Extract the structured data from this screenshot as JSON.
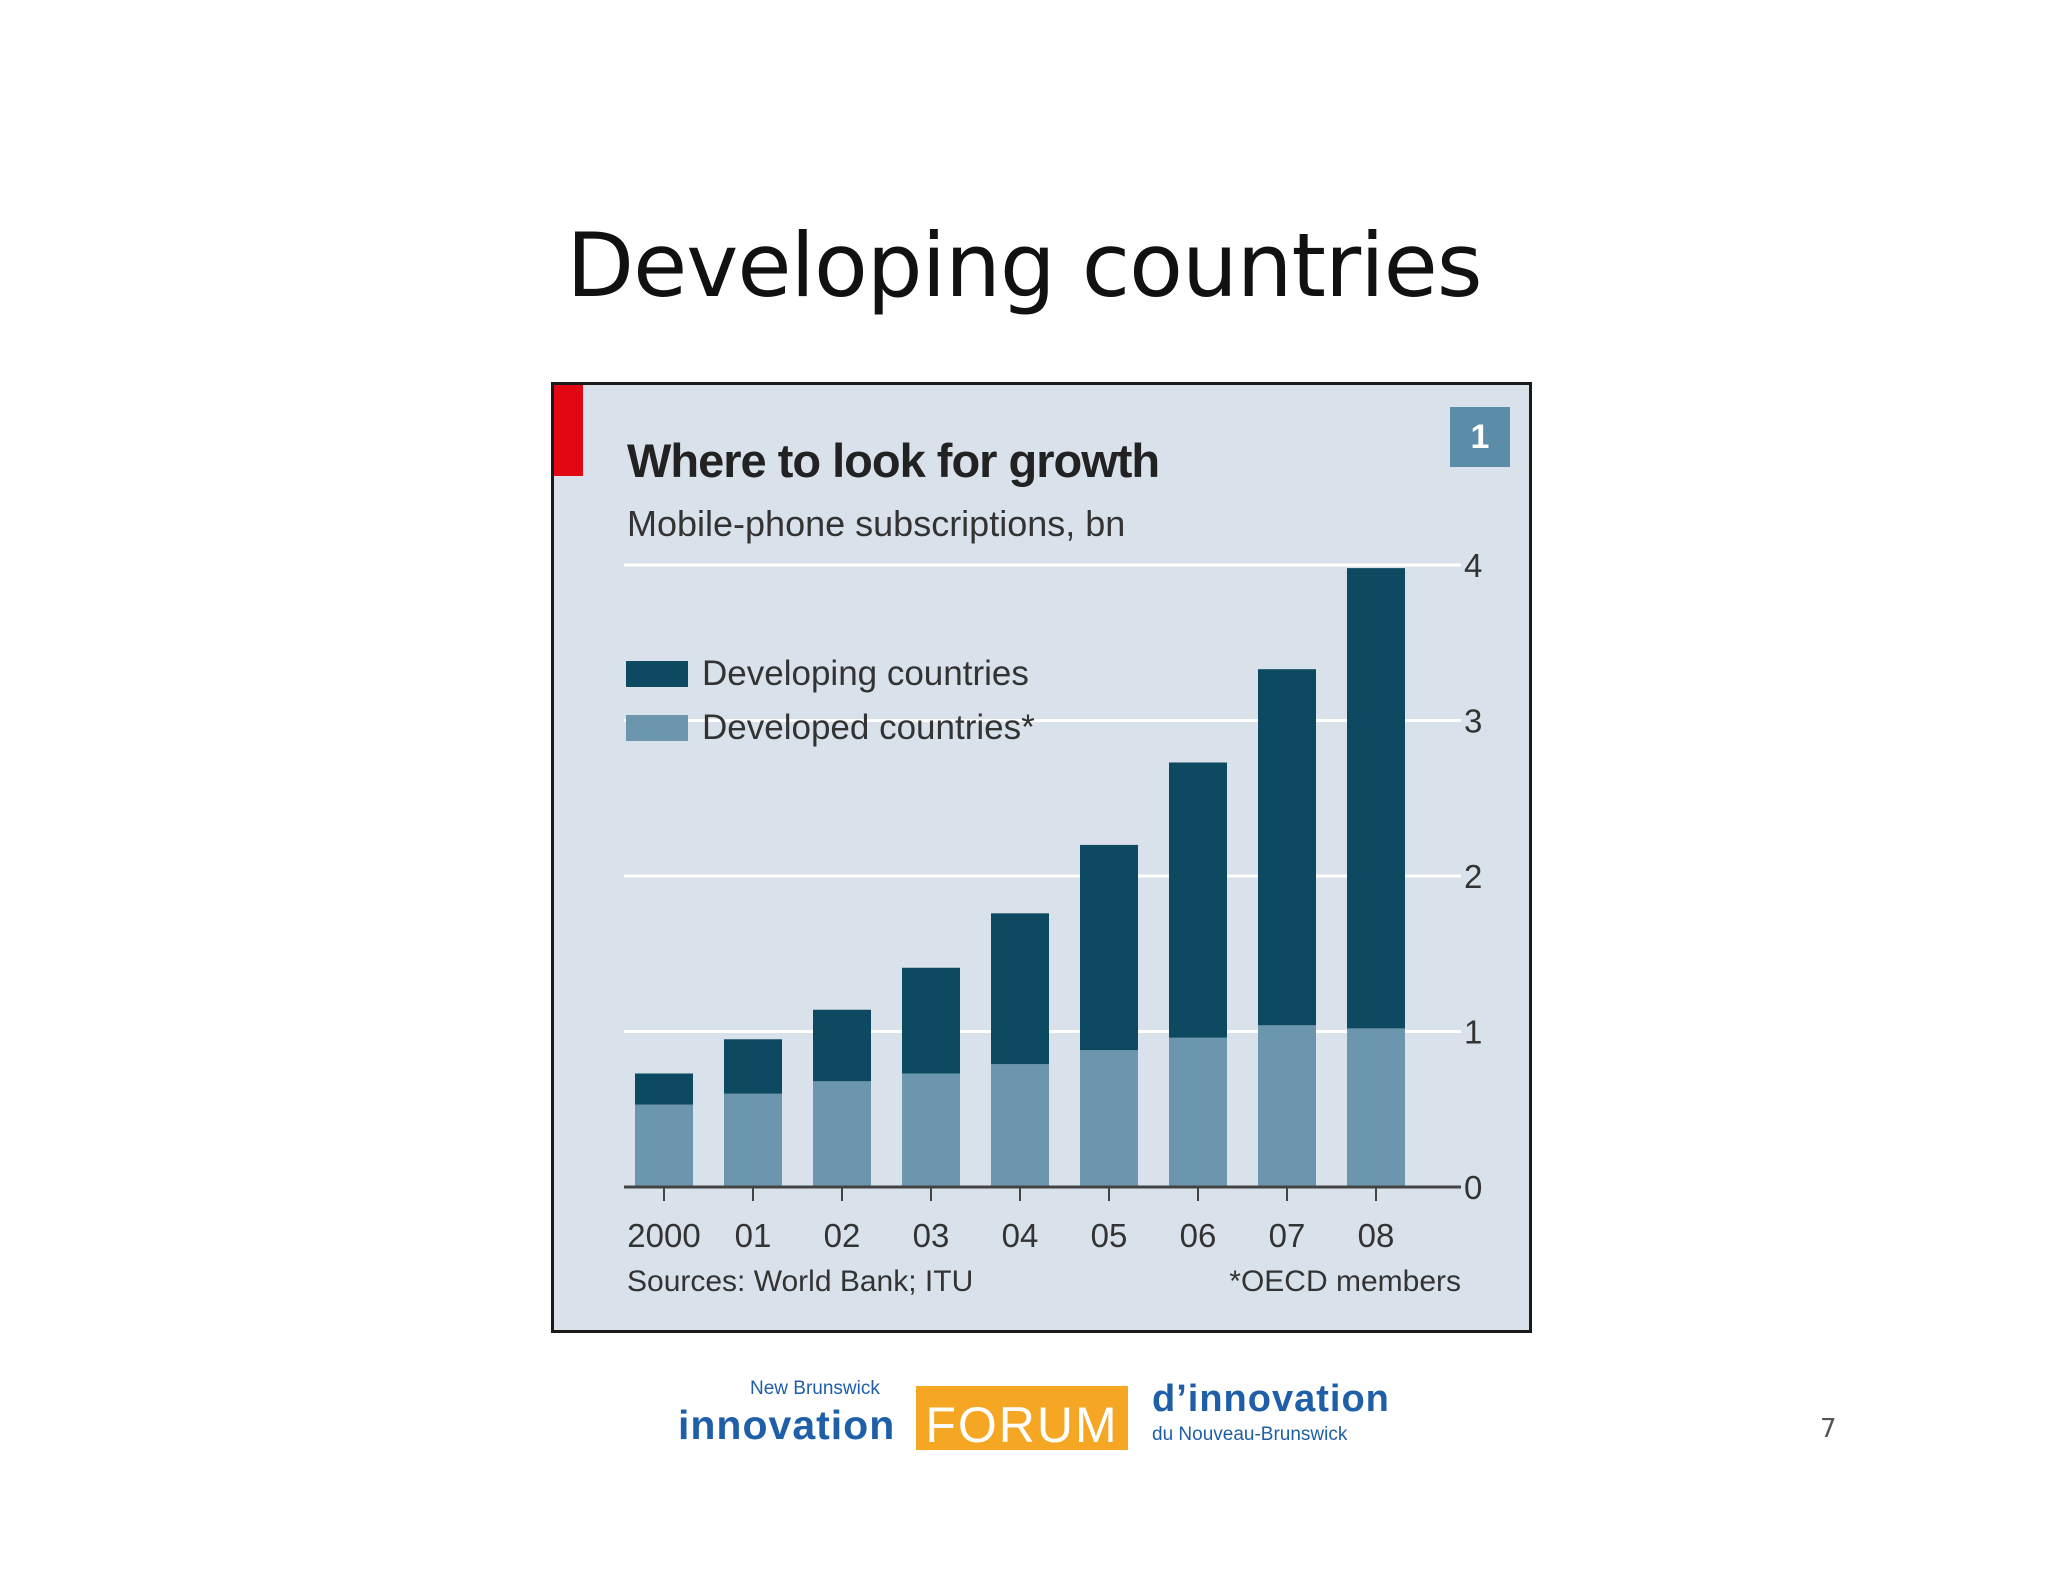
{
  "slide": {
    "title": "Developing countries",
    "page_number": "7"
  },
  "chart_data": {
    "type": "bar",
    "stacked": true,
    "title": "Where to look for growth",
    "subtitle": "Mobile-phone subscriptions, bn",
    "badge": "1",
    "categories": [
      "2000",
      "01",
      "02",
      "03",
      "04",
      "05",
      "06",
      "07",
      "08"
    ],
    "series": [
      {
        "name": "Developed countries*",
        "values": [
          0.53,
          0.6,
          0.68,
          0.73,
          0.79,
          0.88,
          0.96,
          1.04,
          1.02
        ],
        "color": "#6b96ad"
      },
      {
        "name": "Developing countries",
        "values": [
          0.2,
          0.35,
          0.46,
          0.68,
          0.97,
          1.32,
          1.77,
          2.29,
          2.96
        ],
        "color": "#0d4a61"
      }
    ],
    "legend_order": [
      1,
      0
    ],
    "yticks": [
      0,
      1,
      2,
      3,
      4
    ],
    "ylim": [
      0,
      4
    ],
    "xlabel": "",
    "ylabel": "",
    "grid": true,
    "legend_position": "top-left",
    "source": "Sources: World Bank; ITU",
    "footnote": "*OECD members",
    "colors": {
      "background": "#d9e2ea",
      "accent": "#e30613",
      "gridline": "#ffffff",
      "badge": "#5b8ca8"
    }
  },
  "logo": {
    "top_left": "New Brunswick",
    "left_word": "innovation",
    "center_word": "FORUM",
    "right_word": "d’innovation",
    "bottom_right": "du Nouveau-Brunswick"
  }
}
